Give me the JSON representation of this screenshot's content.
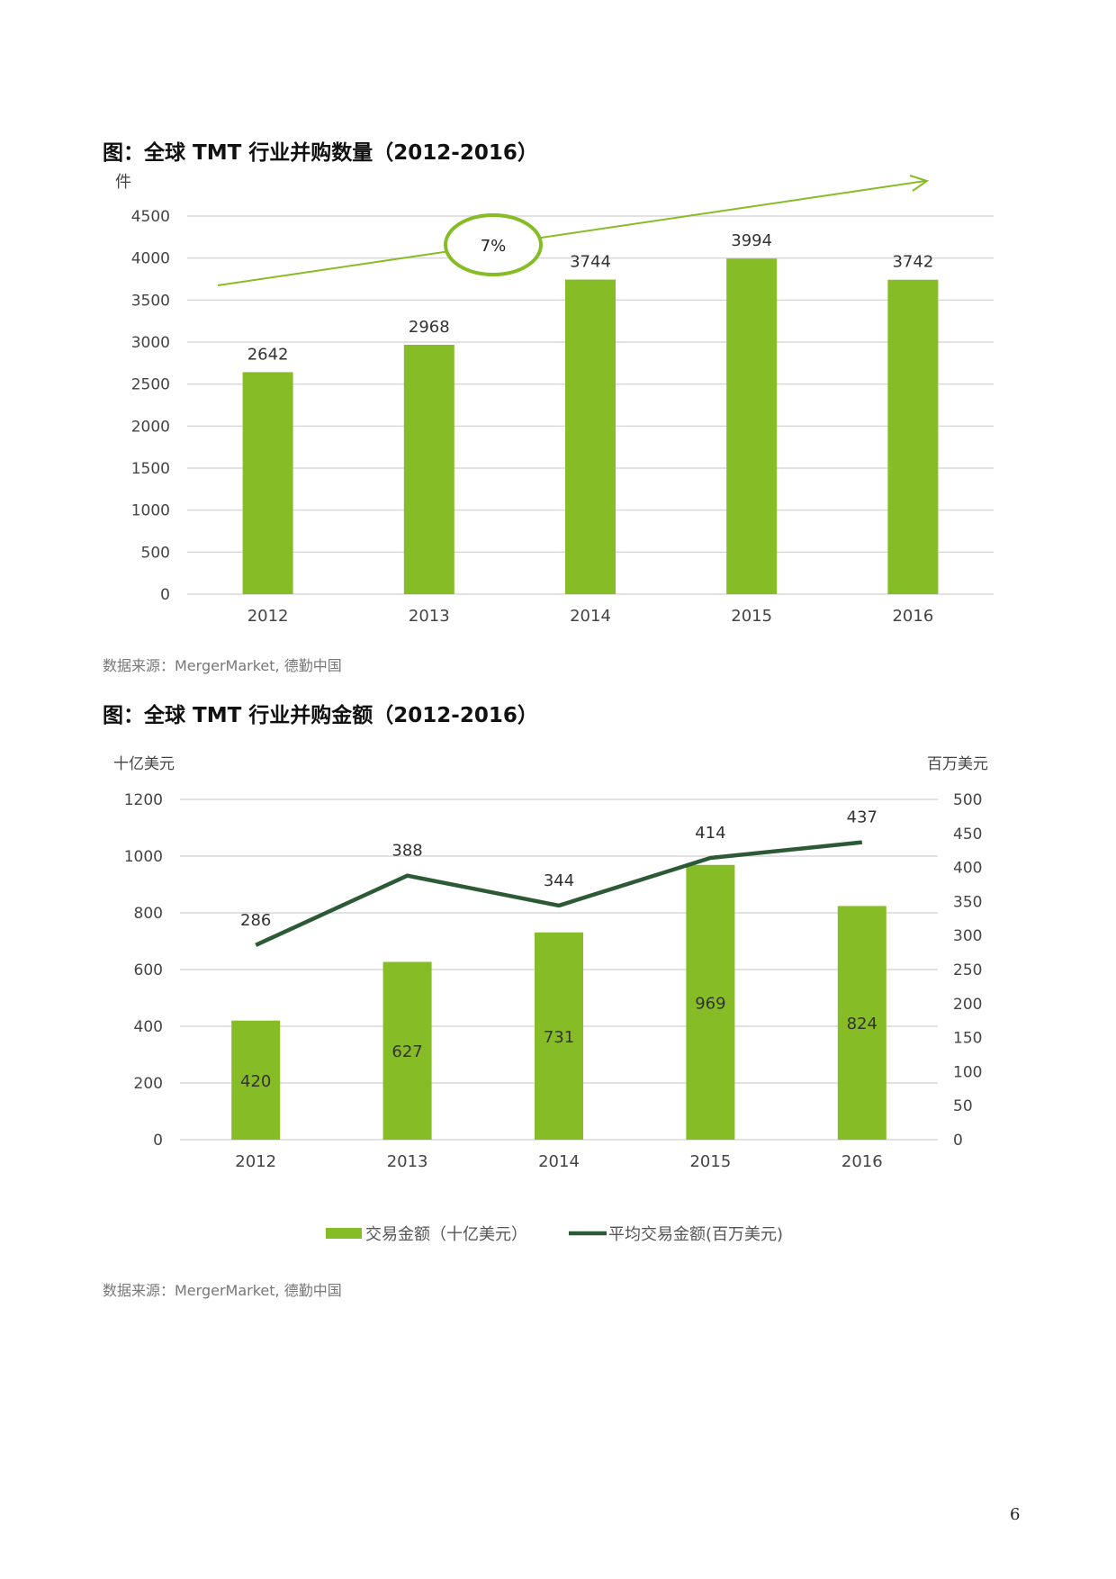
{
  "page_number": "6",
  "colors": {
    "bar": "#86bc25",
    "line": "#2d5a36",
    "grid": "#d9d9d9",
    "axis_text": "#444444",
    "arrow": "#86bc25"
  },
  "chart_data": [
    {
      "type": "bar",
      "title": "图：全球 TMT 行业并购数量（2012-2016）",
      "ylabel": "件",
      "categories": [
        "2012",
        "2013",
        "2014",
        "2015",
        "2016"
      ],
      "values": [
        2642,
        2968,
        3744,
        3994,
        3742
      ],
      "ylim": [
        0,
        4500
      ],
      "yticks": [
        "0",
        "500",
        "1000",
        "1500",
        "2000",
        "2500",
        "3000",
        "3500",
        "4000",
        "4500"
      ],
      "annotation": "7%",
      "grid": true,
      "source": "数据来源：MergerMarket, 德勤中国"
    },
    {
      "type": "bar+line",
      "title": "图：全球 TMT 行业并购金额（2012-2016）",
      "ylabel_left": "十亿美元",
      "ylabel_right": "百万美元",
      "categories": [
        "2012",
        "2013",
        "2014",
        "2015",
        "2016"
      ],
      "series": [
        {
          "name": "交易金额（十亿美元）",
          "type": "bar",
          "axis": "left",
          "values": [
            420,
            627,
            731,
            969,
            824
          ]
        },
        {
          "name": "平均交易金额(百万美元)",
          "type": "line",
          "axis": "right",
          "values": [
            286,
            388,
            344,
            414,
            437
          ]
        }
      ],
      "ylim_left": [
        0,
        1200
      ],
      "ylim_right": [
        0,
        500
      ],
      "yticks_left": [
        "0",
        "200",
        "400",
        "600",
        "800",
        "1000",
        "1200"
      ],
      "yticks_right": [
        "0",
        "50",
        "100",
        "150",
        "200",
        "250",
        "300",
        "350",
        "400",
        "450",
        "500"
      ],
      "legend": "bottom",
      "grid": true,
      "source": "数据来源：MergerMarket, 德勤中国"
    }
  ]
}
